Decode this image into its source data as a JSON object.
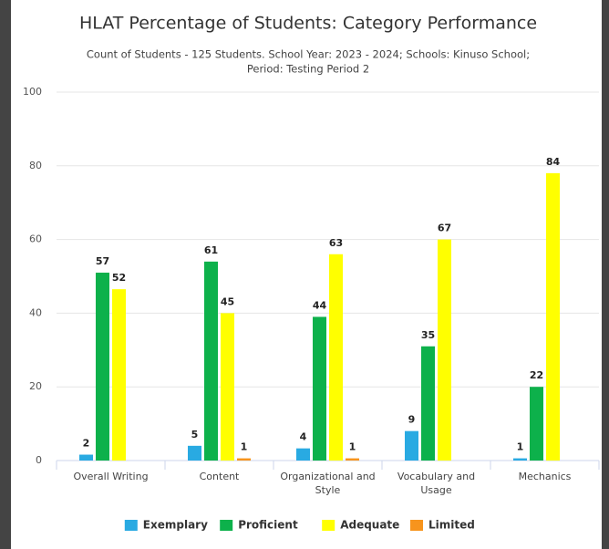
{
  "chart_data": {
    "type": "bar",
    "title": "HLAT Percentage of Students: Category Performance",
    "subtitle": "Count of Students - 125 Students. School Year: 2023 - 2024; Schools: Kinuso School;",
    "subtitle_line2": "Period: Testing Period 2",
    "categories": [
      "Overall Writing",
      "Content",
      "Organizational and Style",
      "Vocabulary and Usage",
      "Mechanics"
    ],
    "series": [
      {
        "name": "Exemplary",
        "color": "#29aae2",
        "values": [
          1.6,
          4,
          3.3,
          8,
          0.6
        ],
        "counts": [
          2,
          5,
          4,
          9,
          1
        ]
      },
      {
        "name": "Proficient",
        "color": "#0db14b",
        "values": [
          51,
          54,
          39,
          31,
          20
        ],
        "counts": [
          57,
          61,
          44,
          35,
          22
        ]
      },
      {
        "name": "Adequate",
        "color": "#ffff00",
        "values": [
          46.5,
          40,
          56,
          60,
          78
        ],
        "counts": [
          52,
          45,
          63,
          67,
          84
        ]
      },
      {
        "name": "Limited",
        "color": "#f7941d",
        "values": [
          null,
          0.6,
          0.6,
          null,
          null
        ],
        "counts": [
          null,
          1,
          1,
          null,
          null
        ]
      }
    ],
    "ylim": [
      0,
      100
    ],
    "yticks": [
      0,
      20,
      40,
      60,
      80,
      100
    ],
    "grid": true,
    "legend": "bottom"
  }
}
